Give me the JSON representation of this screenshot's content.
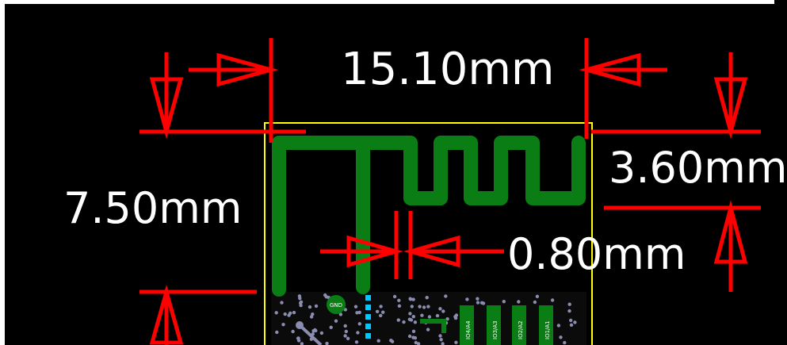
{
  "dimensions": {
    "width_label": "15.10mm",
    "height_label": "7.50mm",
    "antenna_height_label": "3.60mm",
    "gap_label": "0.80mm"
  },
  "silkscreen": {
    "pad_labels": [
      "GND",
      "IO4/A4",
      "IO3/A3",
      "IO2/A2",
      "IO1/A1"
    ]
  },
  "colors": {
    "background": "#000000",
    "dimension": "#ff0000",
    "trace": "#0a7d14",
    "outline": "#ffff00",
    "text": "#ffffff",
    "via": "#8a8cb0",
    "pad": "#00c8ff"
  }
}
